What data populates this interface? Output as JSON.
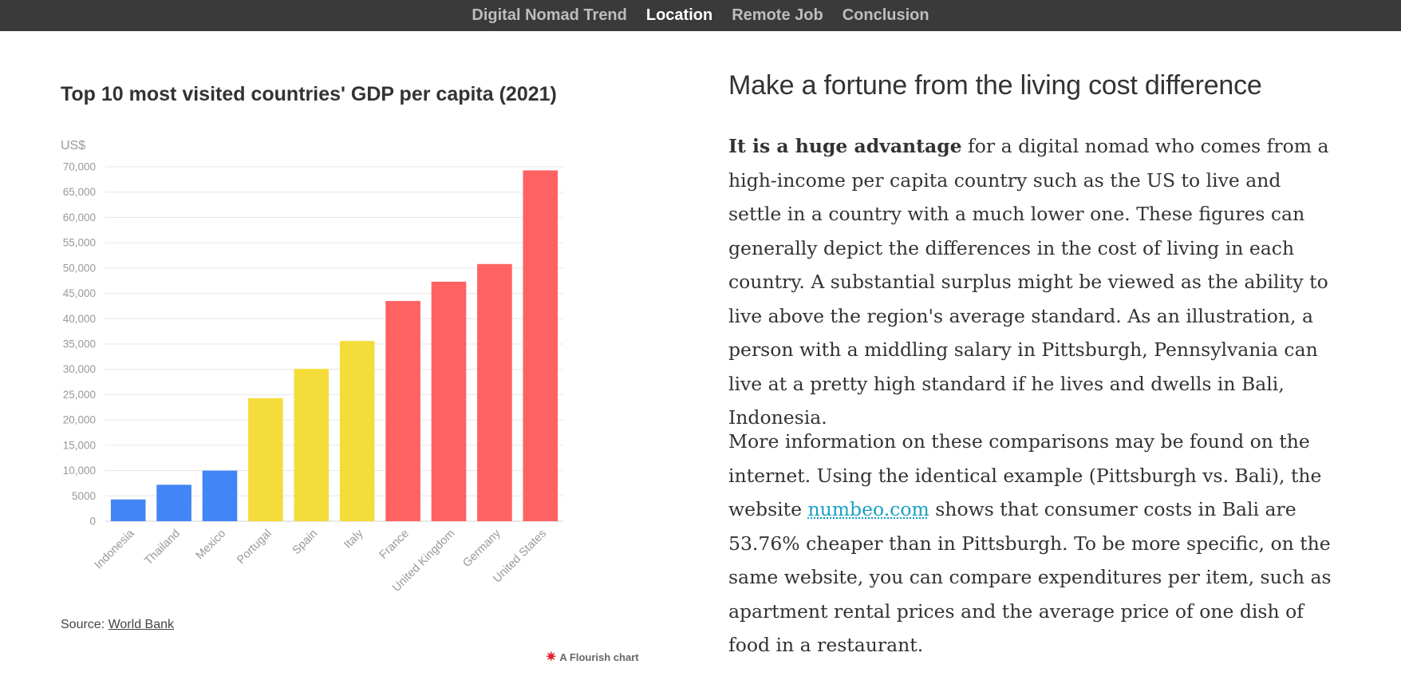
{
  "nav": {
    "items": [
      {
        "label": "Digital Nomad Trend",
        "active": false
      },
      {
        "label": "Location",
        "active": true
      },
      {
        "label": "Remote Job",
        "active": false
      },
      {
        "label": "Conclusion",
        "active": false
      }
    ]
  },
  "chart": {
    "title": "Top 10 most visited countries' GDP per capita (2021)",
    "source_prefix": "Source: ",
    "source_link": "World Bank",
    "credit": "A Flourish chart"
  },
  "chart_data": {
    "type": "bar",
    "title": "Top 10 most visited countries' GDP per capita (2021)",
    "ylabel": "US$",
    "xlabel": "",
    "ylim": [
      0,
      70000
    ],
    "yticks": [
      0,
      5000,
      10000,
      15000,
      20000,
      25000,
      30000,
      35000,
      40000,
      45000,
      50000,
      55000,
      60000,
      65000,
      70000
    ],
    "ytick_labels": [
      "0",
      "5000",
      "10,000",
      "15,000",
      "20,000",
      "25,000",
      "30,000",
      "35,000",
      "40,000",
      "45,000",
      "50,000",
      "55,000",
      "60,000",
      "65,000",
      "70,000"
    ],
    "categories": [
      "Indonesia",
      "Thailand",
      "Mexico",
      "Portugal",
      "Spain",
      "Italy",
      "France",
      "United Kingdom",
      "Germany",
      "United States"
    ],
    "values": [
      4300,
      7200,
      10000,
      24300,
      30100,
      35600,
      43500,
      47300,
      50800,
      69300
    ],
    "bar_colors": [
      "#4285f4",
      "#4285f4",
      "#4285f4",
      "#f4dc3b",
      "#f4dc3b",
      "#f4dc3b",
      "#ff6263",
      "#ff6263",
      "#ff6263",
      "#ff6263"
    ],
    "grid": true,
    "legend": "none"
  },
  "article": {
    "heading": "Make a fortune from the living cost difference",
    "p1_bold": "It is a huge advantage",
    "p1_rest": " for a digital nomad who comes from a high-income per capita country such as the US to live and settle in a country with a much lower one. These figures can generally depict the differences in the cost of living in each country. A substantial surplus might be viewed as the ability to live above the region's average standard. As an illustration, a person with a middling salary in Pittsburgh, Pennsylvania can live at a pretty high standard if he lives and dwells in Bali, Indonesia.",
    "p2_before": "More information on these comparisons may be found on the internet. Using the identical example (Pittsburgh vs. Bali), the website ",
    "p2_link": "numbeo.com",
    "p2_after": " shows that consumer costs in Bali are 53.76% cheaper than in Pittsburgh. To be more specific, on the same website, you can compare expenditures per item, such as apartment rental prices and the average price of one dish of food in a restaurant."
  }
}
